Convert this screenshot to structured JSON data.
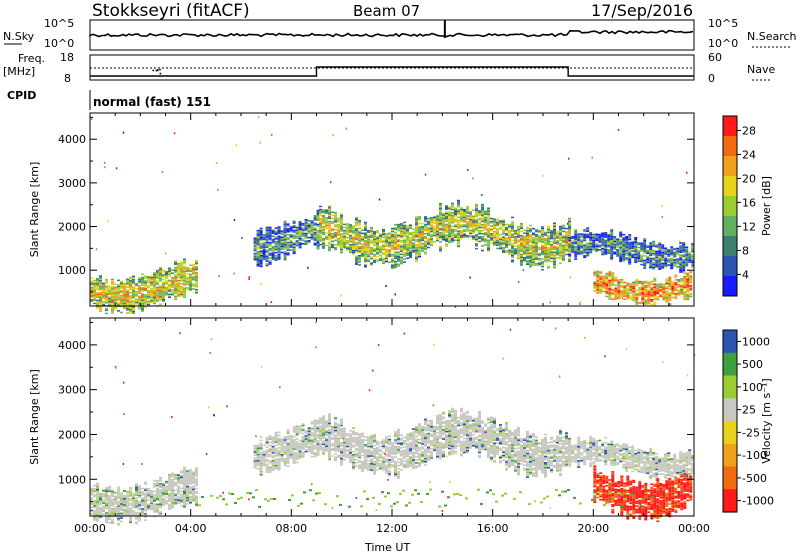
{
  "header": {
    "station": "Stokkseyri (fitACF)",
    "beam": "Beam 07",
    "date": "17/Sep/2016"
  },
  "status_panel": {
    "nsky_label": "N.Sky",
    "nsky_ticks": [
      "10^5",
      "10^0"
    ],
    "nsearch_label": "N.Search",
    "nsearch_ticks": [
      "10^5",
      "10^0"
    ],
    "freq_label": "Freq.",
    "freq_unit": "[MHz]",
    "freq_ticks": [
      "18",
      "8"
    ],
    "nave_label": "Nave",
    "nave_ticks": [
      "60",
      "0"
    ],
    "cpid_label": "CPID",
    "cpid_value": "normal (fast) 151"
  },
  "chart_data": [
    {
      "type": "heatmap",
      "panel": "power",
      "ylabel": "Slant Range [km]",
      "xlabel": "",
      "colorbar_label": "Power [dB]",
      "xlim": [
        0,
        24
      ],
      "ylim": [
        180,
        4600
      ],
      "x_ticks": [
        "00:00",
        "04:00",
        "08:00",
        "12:00",
        "16:00",
        "20:00",
        "00:00"
      ],
      "y_ticks": [
        "4000",
        "3000",
        "2000",
        "1000"
      ],
      "colorbar_ticks": [
        "28",
        "24",
        "20",
        "16",
        "12",
        "8",
        "4"
      ],
      "colorscale": [
        "#1a1aff",
        "#2a55b0",
        "#3f7f6e",
        "#5fb05f",
        "#9acd32",
        "#e8d21a",
        "#f0a01a",
        "#f06a10",
        "#ff1a1a"
      ],
      "echo_regions": [
        {
          "t_start": 0.0,
          "t_end": 4.2,
          "range_min": 300,
          "range_max": 1200,
          "mean_power_db": 20
        },
        {
          "t_start": 6.5,
          "t_end": 9.1,
          "range_min": 1400,
          "range_max": 2300,
          "mean_power_db": 12
        },
        {
          "t_start": 9.1,
          "t_end": 19.0,
          "range_min": 1400,
          "range_max": 2500,
          "mean_power_db": 18
        },
        {
          "t_start": 19.0,
          "t_end": 23.9,
          "range_min": 1200,
          "range_max": 1900,
          "mean_power_db": 12
        },
        {
          "t_start": 20.0,
          "t_end": 23.9,
          "range_min": 400,
          "range_max": 1100,
          "mean_power_db": 24
        }
      ]
    },
    {
      "type": "heatmap",
      "panel": "velocity",
      "ylabel": "Slant Range [km]",
      "xlabel": "Time UT",
      "colorbar_label": "Velocity [m s⁻¹]",
      "xlim": [
        0,
        24
      ],
      "ylim": [
        180,
        4600
      ],
      "x_ticks": [
        "00:00",
        "04:00",
        "08:00",
        "12:00",
        "16:00",
        "20:00",
        "00:00"
      ],
      "y_ticks": [
        "4000",
        "3000",
        "2000",
        "1000"
      ],
      "colorbar_ticks": [
        "1000",
        "500",
        "100",
        "25",
        "-25",
        "-100",
        "-500",
        "-1000"
      ],
      "colorscale": [
        "#ff1a1a",
        "#f06a10",
        "#f0a01a",
        "#e8d21a",
        "#c8c8c0",
        "#9acd32",
        "#3fa040",
        "#2a55b0"
      ],
      "echo_regions": [
        {
          "t_start": 0.0,
          "t_end": 4.2,
          "range_min": 300,
          "range_max": 1200,
          "mean_velocity": 0
        },
        {
          "t_start": 6.5,
          "t_end": 9.1,
          "range_min": 1400,
          "range_max": 2300,
          "mean_velocity": 0
        },
        {
          "t_start": 9.1,
          "t_end": 19.0,
          "range_min": 1400,
          "range_max": 2500,
          "mean_velocity": 0
        },
        {
          "t_start": 19.0,
          "t_end": 23.9,
          "range_min": 1200,
          "range_max": 1900,
          "mean_velocity": 0
        },
        {
          "t_start": 20.0,
          "t_end": 23.9,
          "range_min": 400,
          "range_max": 1400,
          "mean_velocity": -700
        }
      ]
    }
  ]
}
